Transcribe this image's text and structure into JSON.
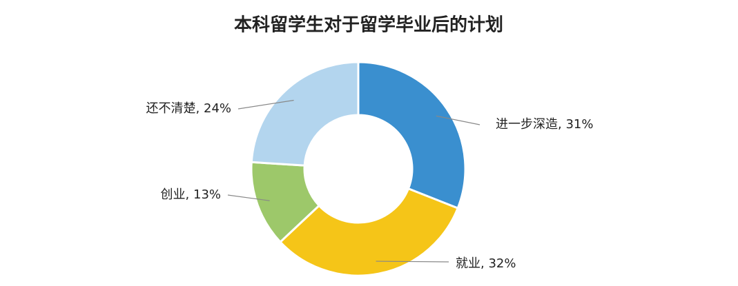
{
  "chart_data": {
    "type": "donut",
    "title": "本科留学生对于留学毕业后的计划",
    "categories": [
      "进一步深造",
      "就业",
      "创业",
      "还不清楚"
    ],
    "values": [
      31,
      32,
      13,
      24
    ],
    "value_labels": [
      "进一步深造, 31%",
      "就业, 32%",
      "创业, 13%",
      "还不清楚, 24%"
    ],
    "colors": [
      "#3a8fcf",
      "#f5c518",
      "#9dc86a",
      "#b3d5ee"
    ]
  }
}
